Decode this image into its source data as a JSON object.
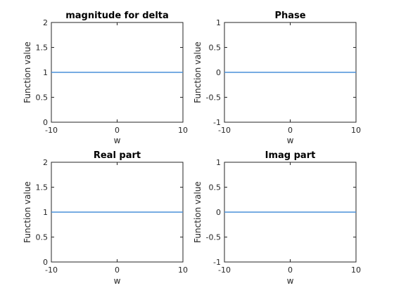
{
  "chart_data": [
    {
      "type": "line",
      "title": "magnitude for delta",
      "xlabel": "w",
      "ylabel": "Function value",
      "xlim": [
        -10,
        10
      ],
      "ylim": [
        0,
        2
      ],
      "xticks": [
        -10,
        0,
        10
      ],
      "xtick_labels": [
        "-10",
        "0",
        "10"
      ],
      "yticks": [
        0,
        0.5,
        1,
        1.5,
        2
      ],
      "ytick_labels": [
        "0",
        "0.5",
        "1",
        "1.5",
        "2"
      ],
      "grid": false,
      "color": "#4a90d9",
      "series": [
        {
          "x": [
            -10,
            10
          ],
          "y": [
            1,
            1
          ]
        }
      ]
    },
    {
      "type": "line",
      "title": "Phase",
      "xlabel": "w",
      "ylabel": "Function value",
      "xlim": [
        -10,
        10
      ],
      "ylim": [
        -1,
        1
      ],
      "xticks": [
        -10,
        0,
        10
      ],
      "xtick_labels": [
        "-10",
        "0",
        "10"
      ],
      "yticks": [
        -1,
        -0.5,
        0,
        0.5,
        1
      ],
      "ytick_labels": [
        "-1",
        "-0.5",
        "0",
        "0.5",
        "1"
      ],
      "grid": false,
      "color": "#4a90d9",
      "series": [
        {
          "x": [
            -10,
            10
          ],
          "y": [
            0,
            0
          ]
        }
      ]
    },
    {
      "type": "line",
      "title": "Real part",
      "xlabel": "w",
      "ylabel": "Function value",
      "xlim": [
        -10,
        10
      ],
      "ylim": [
        0,
        2
      ],
      "xticks": [
        -10,
        0,
        10
      ],
      "xtick_labels": [
        "-10",
        "0",
        "10"
      ],
      "yticks": [
        0,
        0.5,
        1,
        1.5,
        2
      ],
      "ytick_labels": [
        "0",
        "0.5",
        "1",
        "1.5",
        "2"
      ],
      "grid": false,
      "color": "#4a90d9",
      "series": [
        {
          "x": [
            -10,
            10
          ],
          "y": [
            1,
            1
          ]
        }
      ]
    },
    {
      "type": "line",
      "title": "Imag part",
      "xlabel": "w",
      "ylabel": "Function value",
      "xlim": [
        -10,
        10
      ],
      "ylim": [
        -1,
        1
      ],
      "xticks": [
        -10,
        0,
        10
      ],
      "xtick_labels": [
        "-10",
        "0",
        "10"
      ],
      "yticks": [
        -1,
        -0.5,
        0,
        0.5,
        1
      ],
      "ytick_labels": [
        "-1",
        "-0.5",
        "0",
        "0.5",
        "1"
      ],
      "grid": false,
      "color": "#4a90d9",
      "series": [
        {
          "x": [
            -10,
            10
          ],
          "y": [
            0,
            0
          ]
        }
      ]
    }
  ]
}
